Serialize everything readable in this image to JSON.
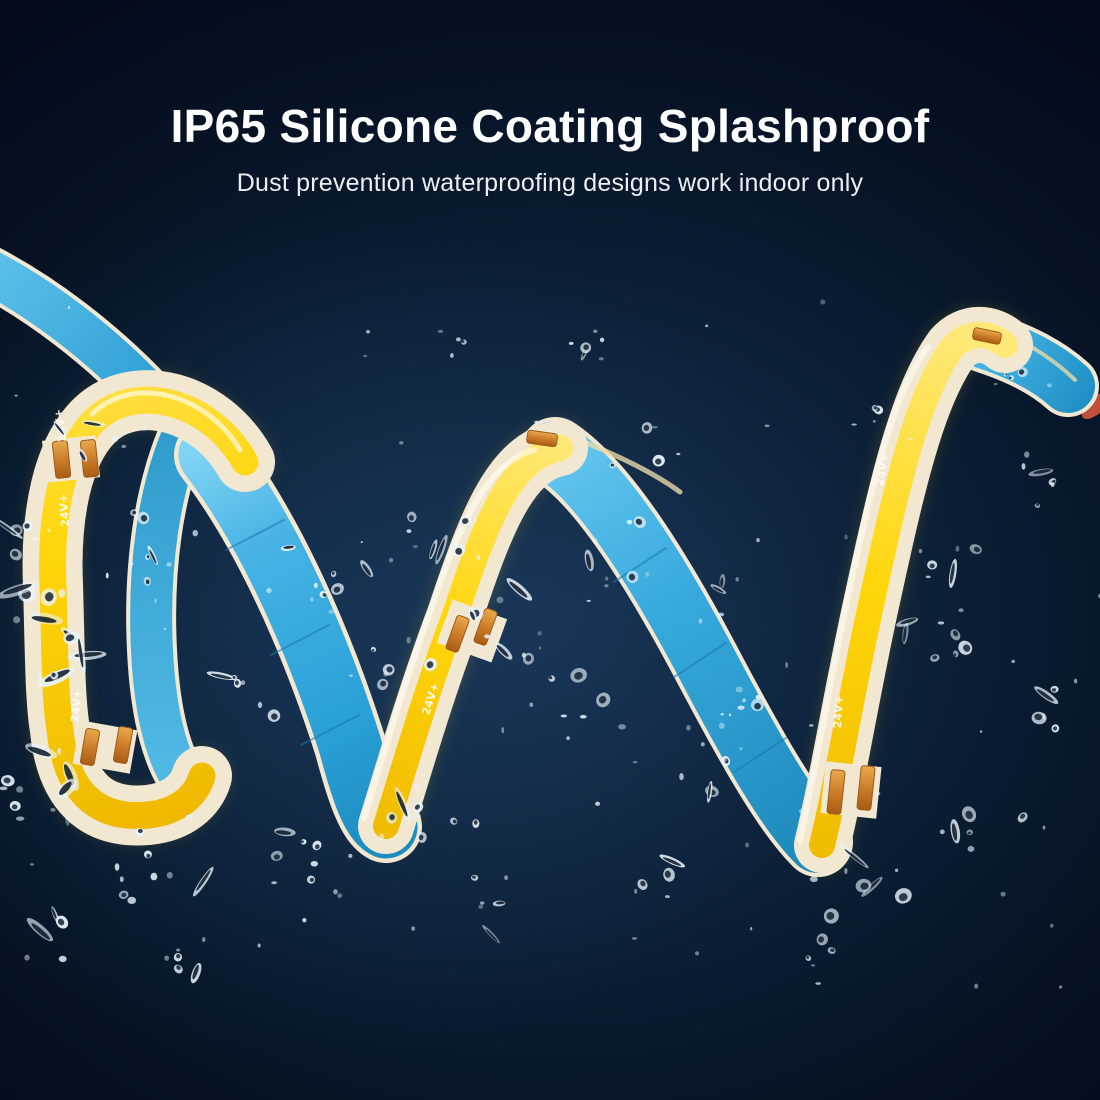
{
  "title": "IP65 Silicone Coating Splashproof",
  "subtitle": "Dust prevention waterproofing designs work indoor only",
  "strip": {
    "marking": "24V+",
    "colors": {
      "face_yellow": "#ffd60a",
      "back_blue": "#35aadf",
      "silicone_edge": "#f2e8d2",
      "solder_pad": "#cd7d2a",
      "cut_tip": "#bf4f38",
      "marking_text": "#fdfcf5",
      "background": "#0a1c33",
      "headline_text": "#ffffff"
    }
  }
}
